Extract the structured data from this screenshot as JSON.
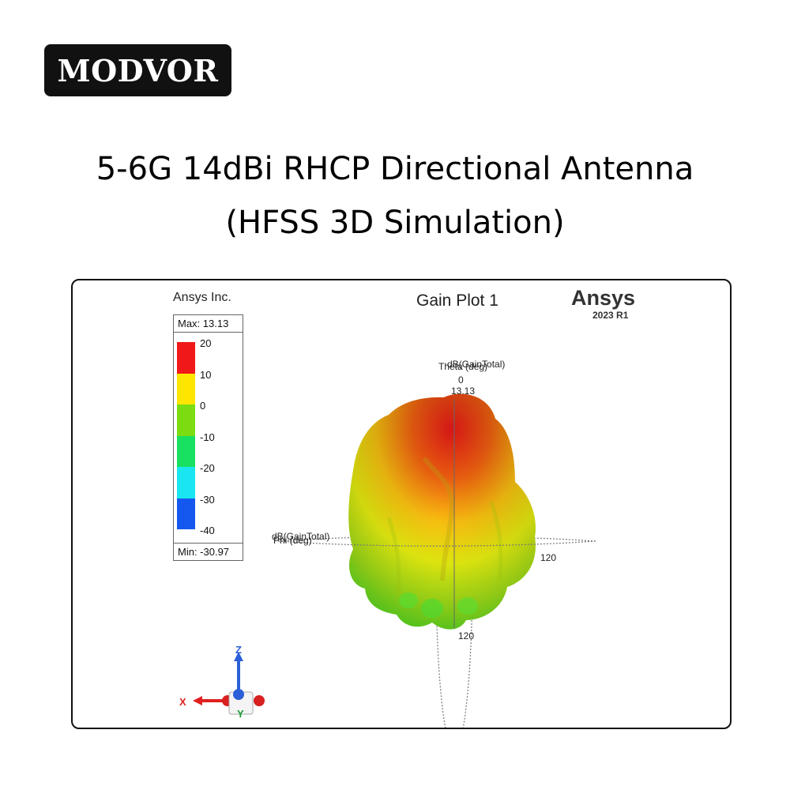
{
  "brand": {
    "logo_text": "MODVOR"
  },
  "heading": {
    "line1": "5-6G 14dBi RHCP Directional Antenna",
    "line2": "(HFSS 3D Simulation)"
  },
  "plot": {
    "company": "Ansys Inc.",
    "title": "Gain Plot 1",
    "vendor": "Ansys",
    "version": "2023 R1",
    "legend": {
      "max": "Max: 13.13",
      "min": "Min: -30.97",
      "ticks": [
        "20",
        "10",
        "0",
        "-10",
        "-20",
        "-30",
        "-40"
      ],
      "colors": [
        "#f01818",
        "#ffe600",
        "#7cdc12",
        "#18e060",
        "#19e6f0",
        "#1558f0"
      ]
    },
    "axis_labels": {
      "theta_top_a": "dB(GainTotal)",
      "theta_top_b": "Theta (deg)",
      "theta_zero": "0",
      "max_value": "13.13",
      "phi_a": "dB(GainTotal)",
      "phi_b": "Phi (deg)",
      "right_120": "120",
      "bottom_120": "120"
    },
    "triad": {
      "z": "Z",
      "x": "X",
      "y": "Y"
    }
  }
}
